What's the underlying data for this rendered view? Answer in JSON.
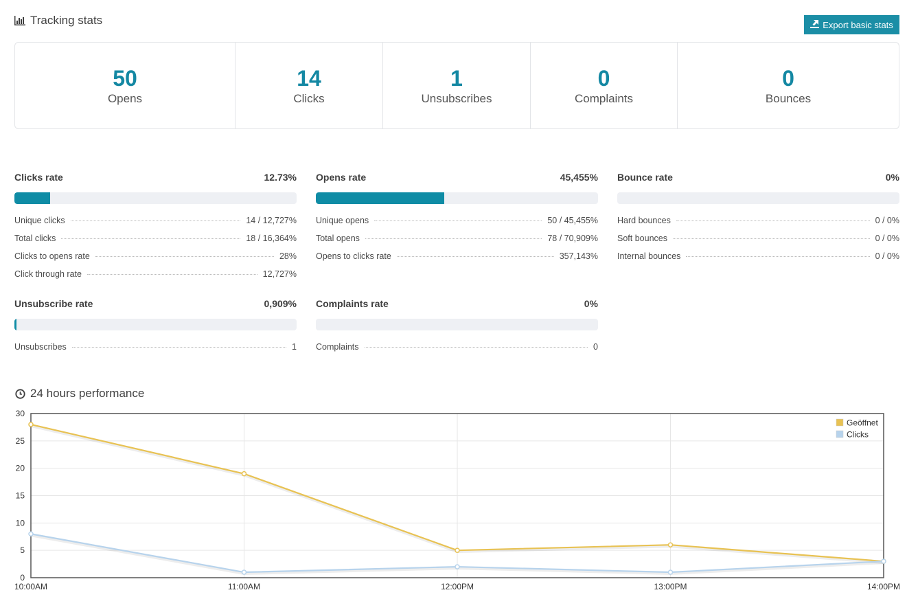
{
  "header": {
    "title": "Tracking stats",
    "title_icon": "bar-chart-icon",
    "export_label": "Export basic stats",
    "export_icon": "export-icon"
  },
  "summary": [
    {
      "value": "50",
      "label": "Opens"
    },
    {
      "value": "14",
      "label": "Clicks"
    },
    {
      "value": "1",
      "label": "Unsubscribes"
    },
    {
      "value": "0",
      "label": "Complaints"
    },
    {
      "value": "0",
      "label": "Bounces"
    }
  ],
  "rates": {
    "clicks": {
      "title": "Clicks rate",
      "value": "12.73%",
      "fill": 0.1273,
      "rows": [
        {
          "name": "Unique clicks",
          "value": "14 / 12,727%"
        },
        {
          "name": "Total clicks",
          "value": "18 / 16,364%"
        },
        {
          "name": "Clicks to opens rate",
          "value": "28%"
        },
        {
          "name": "Click through rate",
          "value": "12,727%"
        }
      ]
    },
    "opens": {
      "title": "Opens rate",
      "value": "45,455%",
      "fill": 0.45455,
      "rows": [
        {
          "name": "Unique opens",
          "value": "50 / 45,455%"
        },
        {
          "name": "Total opens",
          "value": "78 / 70,909%"
        },
        {
          "name": "Opens to clicks rate",
          "value": "357,143%"
        }
      ]
    },
    "bounce": {
      "title": "Bounce rate",
      "value": "0%",
      "fill": 0,
      "rows": [
        {
          "name": "Hard bounces",
          "value": "0 / 0%"
        },
        {
          "name": "Soft bounces",
          "value": "0 / 0%"
        },
        {
          "name": "Internal bounces",
          "value": "0 / 0%"
        }
      ]
    },
    "unsubscribe": {
      "title": "Unsubscribe rate",
      "value": "0,909%",
      "fill": 0.00909,
      "rows": [
        {
          "name": "Unsubscribes",
          "value": "1"
        }
      ]
    },
    "complaints": {
      "title": "Complaints rate",
      "value": "0%",
      "fill": 0,
      "rows": [
        {
          "name": "Complaints",
          "value": "0"
        }
      ]
    }
  },
  "performance": {
    "title": "24 hours performance",
    "title_icon": "clock-icon"
  },
  "chart_data": {
    "type": "line",
    "title": "",
    "xlabel": "",
    "ylabel": "",
    "categories": [
      "10:00AM",
      "11:00AM",
      "12:00PM",
      "13:00PM",
      "14:00PM"
    ],
    "ylim": [
      0,
      30
    ],
    "yticks": [
      0,
      5,
      10,
      15,
      20,
      25,
      30
    ],
    "grid": true,
    "legend_position": "top-right",
    "series": [
      {
        "name": "Geöffnet",
        "color": "#e8c253",
        "values": [
          28,
          19,
          5,
          6,
          3
        ]
      },
      {
        "name": "Clicks",
        "color": "#b7d3ec",
        "values": [
          8,
          1,
          2,
          1,
          3
        ]
      }
    ]
  }
}
